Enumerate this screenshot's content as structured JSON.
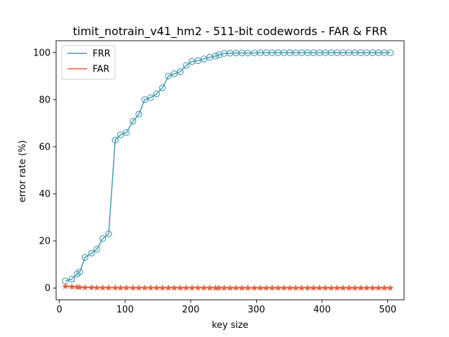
{
  "chart_data": {
    "type": "line",
    "title": "timit_notrain_v41_hm2 - 511-bit codewords - FAR & FRR",
    "xlabel": "key size",
    "ylabel": "error rate (%)",
    "xlim": [
      -5,
      525
    ],
    "ylim": [
      -5,
      105
    ],
    "xticks": [
      0,
      100,
      200,
      300,
      400,
      500
    ],
    "yticks": [
      0,
      20,
      40,
      60,
      80,
      100
    ],
    "grid": false,
    "legend_position": "top-left",
    "series": [
      {
        "name": "FRR",
        "color": "#4499b0",
        "marker": "circle-open",
        "x": [
          9,
          19,
          27,
          31,
          39,
          49,
          57,
          66,
          75,
          85,
          93,
          102,
          112,
          121,
          130,
          139,
          148,
          157,
          166,
          175,
          184,
          193,
          202,
          211,
          220,
          229,
          238,
          243,
          251,
          260,
          269,
          278,
          287,
          297,
          306,
          315,
          324,
          333,
          342,
          351,
          360,
          369,
          378,
          387,
          396,
          405,
          414,
          423,
          432,
          441,
          450,
          459,
          468,
          477,
          486,
          495,
          504
        ],
        "y": [
          3,
          3.8,
          6,
          6.8,
          13,
          14.8,
          16.5,
          21,
          23,
          62.8,
          65,
          66,
          70.8,
          73.8,
          80,
          80.8,
          82.5,
          85,
          90,
          91,
          91.8,
          94.5,
          96.2,
          96.5,
          97.3,
          98,
          98.5,
          99,
          99.6,
          99.7,
          99.8,
          99.8,
          99.8,
          99.8,
          99.9,
          99.9,
          99.9,
          99.9,
          99.9,
          99.9,
          99.9,
          99.9,
          99.9,
          99.9,
          99.9,
          99.9,
          99.9,
          99.9,
          99.9,
          99.9,
          99.9,
          99.9,
          99.9,
          99.9,
          99.9,
          99.9,
          99.9
        ]
      },
      {
        "name": "FAR",
        "color": "#e8603c",
        "marker": "star",
        "x": [
          9,
          19,
          27,
          31,
          39,
          49,
          57,
          66,
          75,
          85,
          93,
          102,
          112,
          121,
          130,
          139,
          148,
          157,
          166,
          175,
          184,
          193,
          202,
          211,
          220,
          229,
          238,
          243,
          251,
          260,
          269,
          278,
          287,
          297,
          306,
          315,
          324,
          333,
          342,
          351,
          360,
          369,
          378,
          387,
          396,
          405,
          414,
          423,
          432,
          441,
          450,
          459,
          468,
          477,
          486,
          495,
          504
        ],
        "y": [
          0.7,
          0.5,
          0.4,
          0.3,
          0.2,
          0.2,
          0.1,
          0.1,
          0.1,
          0.1,
          0.05,
          0.05,
          0.05,
          0.05,
          0.05,
          0.05,
          0.05,
          0.05,
          0.05,
          0.05,
          0.05,
          0.05,
          0.05,
          0.05,
          0.05,
          0.05,
          0.05,
          0.05,
          0,
          0,
          0,
          0,
          0,
          0,
          0,
          0,
          0,
          0,
          0,
          0,
          0,
          0,
          0,
          0,
          0,
          0,
          0,
          0,
          0,
          0,
          0,
          0,
          0,
          0,
          0,
          0,
          0
        ]
      }
    ]
  }
}
